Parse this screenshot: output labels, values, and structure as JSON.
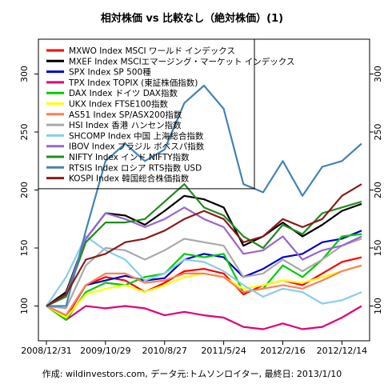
{
  "chart_data": {
    "type": "line",
    "title": "相対株価 vs 比較なし（絶対株価）(1)",
    "footer": "作成: wildinvestors.com, データ元:トムソンロイター, 最終日: 2013/1/10",
    "xlabel": "",
    "ylabel": "",
    "x": [
      "2008/12/31",
      "2009/04/10",
      "2009/07/20",
      "2009/10/29",
      "2010/02/06",
      "2010/05/17",
      "2010/08/27",
      "2010/12/05",
      "2011/03/15",
      "2011/05/24",
      "2011/09/02",
      "2011/12/11",
      "2012/02/16",
      "2012/05/27",
      "2012/09/04",
      "2012/12/14",
      "2013/01/10"
    ],
    "x_ticks": [
      "2008/12/31",
      "2009/10/29",
      "2010/8/27",
      "2011/5/24",
      "2012/2/16",
      "2012/12/14"
    ],
    "x_tick_index": [
      0,
      3,
      6,
      9,
      12,
      15
    ],
    "ylim": [
      70,
      330
    ],
    "y_ticks": [
      100,
      150,
      200,
      250,
      300
    ],
    "grid": false,
    "legend_position": "top-left",
    "series": [
      {
        "name": "MXWO Index MSCI ワールド インデックス",
        "color": "#ff0000",
        "values": [
          100,
          90,
          118,
          125,
          122,
          112,
          120,
          130,
          132,
          128,
          110,
          118,
          122,
          118,
          128,
          138,
          142
        ]
      },
      {
        "name": "MXEF Index MSCIエマージング・マーケット インデックス",
        "color": "#000000",
        "values": [
          100,
          112,
          158,
          180,
          178,
          170,
          182,
          195,
          192,
          185,
          152,
          160,
          172,
          160,
          170,
          182,
          188
        ]
      },
      {
        "name": "SPX Index SP 500種",
        "color": "#0000cc",
        "values": [
          100,
          92,
          118,
          122,
          126,
          122,
          124,
          140,
          145,
          142,
          125,
          132,
          142,
          145,
          155,
          158,
          165
        ]
      },
      {
        "name": "TPX Index TOPIX (東証株価指数)",
        "color": "#e0007a",
        "values": [
          100,
          88,
          100,
          98,
          100,
          98,
          92,
          95,
          92,
          90,
          82,
          80,
          85,
          80,
          82,
          90,
          100
        ]
      },
      {
        "name": "DAX Index ドイツ DAX指数",
        "color": "#00cc00",
        "values": [
          100,
          88,
          112,
          120,
          118,
          125,
          128,
          145,
          142,
          145,
          112,
          115,
          135,
          125,
          140,
          160,
          162
        ]
      },
      {
        "name": "UKX Index FTSE100指数",
        "color": "#ffff00",
        "values": [
          100,
          90,
          110,
          115,
          118,
          112,
          118,
          125,
          128,
          125,
          115,
          118,
          122,
          120,
          125,
          130,
          135
        ]
      },
      {
        "name": "AS51 Index SP/ASX200指数",
        "color": "#ff7f50",
        "values": [
          100,
          92,
          118,
          128,
          128,
          120,
          122,
          128,
          128,
          125,
          112,
          115,
          118,
          115,
          122,
          130,
          135
        ]
      },
      {
        "name": "HSI Index 香港 ハンセン指数",
        "color": "#a9a9a9",
        "values": [
          100,
          98,
          135,
          150,
          148,
          140,
          148,
          158,
          155,
          152,
          125,
          128,
          140,
          130,
          140,
          152,
          158
        ]
      },
      {
        "name": "SHCOMP Index 中国 上海総合指数",
        "color": "#87ceeb",
        "values": [
          100,
          125,
          160,
          148,
          140,
          122,
          128,
          140,
          138,
          130,
          118,
          108,
          115,
          112,
          102,
          105,
          112
        ]
      },
      {
        "name": "IBOV Index ブラジル ボベスパ指数",
        "color": "#9966cc",
        "values": [
          100,
          110,
          158,
          180,
          175,
          168,
          175,
          185,
          175,
          168,
          145,
          148,
          160,
          140,
          148,
          152,
          160
        ]
      },
      {
        "name": "NIFTY Index インド NIFTY指数",
        "color": "#228b22",
        "values": [
          100,
          108,
          155,
          172,
          172,
          175,
          190,
          205,
          185,
          178,
          160,
          150,
          170,
          162,
          180,
          185,
          190
        ]
      },
      {
        "name": "RTSIS Index ロシア RTS指数 USD",
        "color": "#4682b4",
        "values": [
          100,
          100,
          165,
          225,
          240,
          225,
          235,
          275,
          290,
          270,
          205,
          198,
          225,
          195,
          220,
          225,
          240
        ]
      },
      {
        "name": "KOSPI Index 韓国総合株価指数",
        "color": "#8b1a1a",
        "values": [
          100,
          110,
          140,
          145,
          155,
          158,
          165,
          175,
          182,
          175,
          155,
          160,
          175,
          168,
          175,
          195,
          205
        ]
      }
    ]
  }
}
